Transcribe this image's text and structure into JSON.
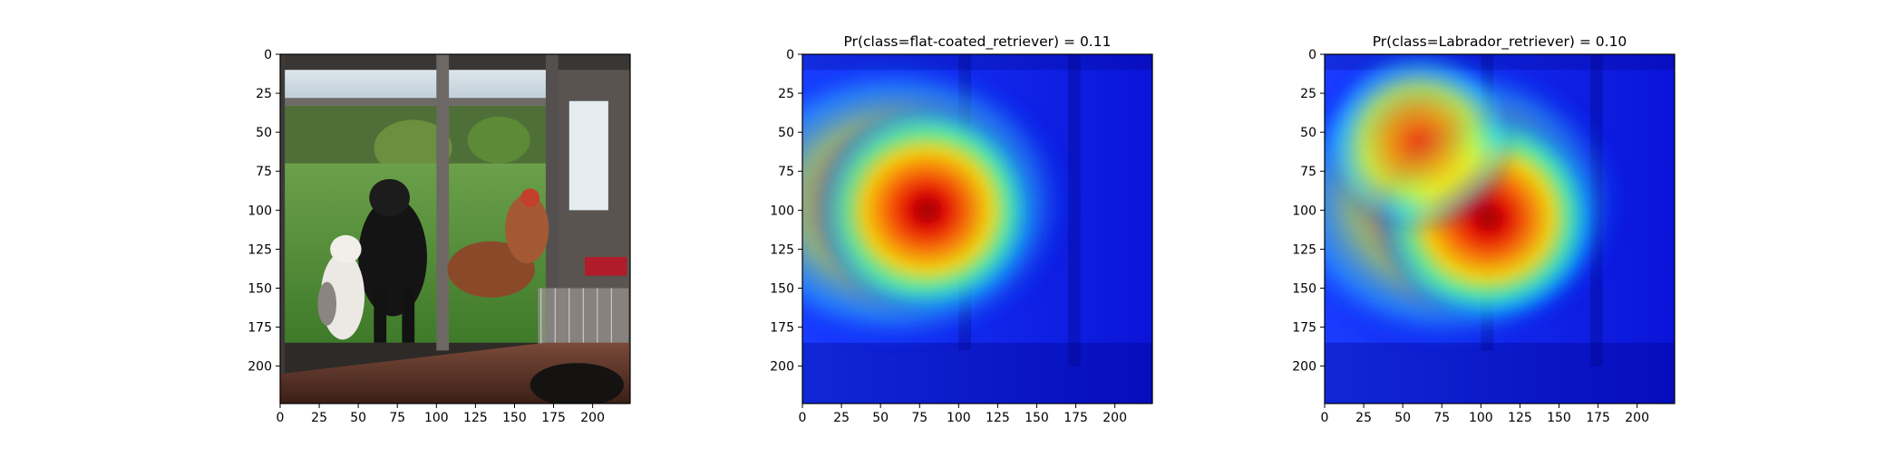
{
  "chart_data": [
    {
      "type": "image",
      "title": "",
      "xlabel": "",
      "ylabel": "",
      "xlim": [
        0,
        224
      ],
      "ylim": [
        224,
        0
      ],
      "xticks": [
        0,
        25,
        50,
        75,
        100,
        125,
        150,
        175,
        200
      ],
      "yticks": [
        0,
        25,
        50,
        75,
        100,
        125,
        150,
        175,
        200
      ],
      "content": "photo"
    },
    {
      "type": "heatmap",
      "title": "Pr(class=flat-coated_retriever) =  0.11",
      "xlabel": "",
      "ylabel": "",
      "xlim": [
        0,
        224
      ],
      "ylim": [
        224,
        0
      ],
      "xticks": [
        0,
        25,
        50,
        75,
        100,
        125,
        150,
        175,
        200
      ],
      "yticks": [
        0,
        25,
        50,
        75,
        100,
        125,
        150,
        175,
        200
      ],
      "colormap": "jet",
      "peaks": [
        {
          "x": 80,
          "y": 100,
          "intensity": 1.0
        }
      ]
    },
    {
      "type": "heatmap",
      "title": "Pr(class=Labrador_retriever) =  0.10",
      "xlabel": "",
      "ylabel": "",
      "xlim": [
        0,
        224
      ],
      "ylim": [
        224,
        0
      ],
      "xticks": [
        0,
        25,
        50,
        75,
        100,
        125,
        150,
        175,
        200
      ],
      "yticks": [
        0,
        25,
        50,
        75,
        100,
        125,
        150,
        175,
        200
      ],
      "colormap": "jet",
      "peaks": [
        {
          "x": 105,
          "y": 105,
          "intensity": 1.0
        },
        {
          "x": 60,
          "y": 55,
          "intensity": 0.7
        }
      ]
    }
  ],
  "colors": {
    "jet_low": "#0000ff",
    "jet_mid": "#00ffff",
    "jet_high": "#ff0000",
    "axis": "#000000",
    "background": "#ffffff"
  }
}
